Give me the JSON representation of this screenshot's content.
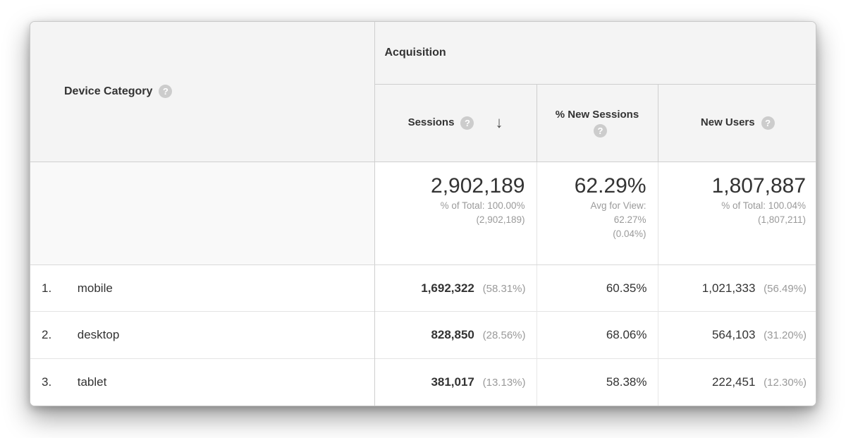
{
  "header": {
    "device_category": "Device Category",
    "acquisition": "Acquisition",
    "sessions": "Sessions",
    "pct_new_sessions": "% New Sessions",
    "new_users": "New Users",
    "help_glyph": "?",
    "sort_arrow": "↓"
  },
  "summary": {
    "sessions_value": "2,902,189",
    "sessions_sub1": "% of Total: 100.00%",
    "sessions_sub2": "(2,902,189)",
    "new_sessions_value": "62.29%",
    "new_sessions_sub1": "Avg for View:",
    "new_sessions_sub2": "62.27%",
    "new_sessions_sub3": "(0.04%)",
    "new_users_value": "1,807,887",
    "new_users_sub1": "% of Total: 100.04%",
    "new_users_sub2": "(1,807,211)"
  },
  "rows": [
    {
      "num": "1.",
      "label": "mobile",
      "sessions": "1,692,322",
      "sessions_pct": "(58.31%)",
      "new_sessions": "60.35%",
      "new_users": "1,021,333",
      "new_users_pct": "(56.49%)"
    },
    {
      "num": "2.",
      "label": "desktop",
      "sessions": "828,850",
      "sessions_pct": "(28.56%)",
      "new_sessions": "68.06%",
      "new_users": "564,103",
      "new_users_pct": "(31.20%)"
    },
    {
      "num": "3.",
      "label": "tablet",
      "sessions": "381,017",
      "sessions_pct": "(13.13%)",
      "new_sessions": "58.38%",
      "new_users": "222,451",
      "new_users_pct": "(12.30%)"
    }
  ],
  "colors": {
    "header_bg": "#f4f4f4",
    "summary_label_bg": "#f9f9f9",
    "border_strong": "#cfcfcf",
    "border_light": "#e4e4e4",
    "text_primary": "#333333",
    "text_secondary": "#9a9a9a",
    "help_icon_bg": "#cccccc"
  }
}
